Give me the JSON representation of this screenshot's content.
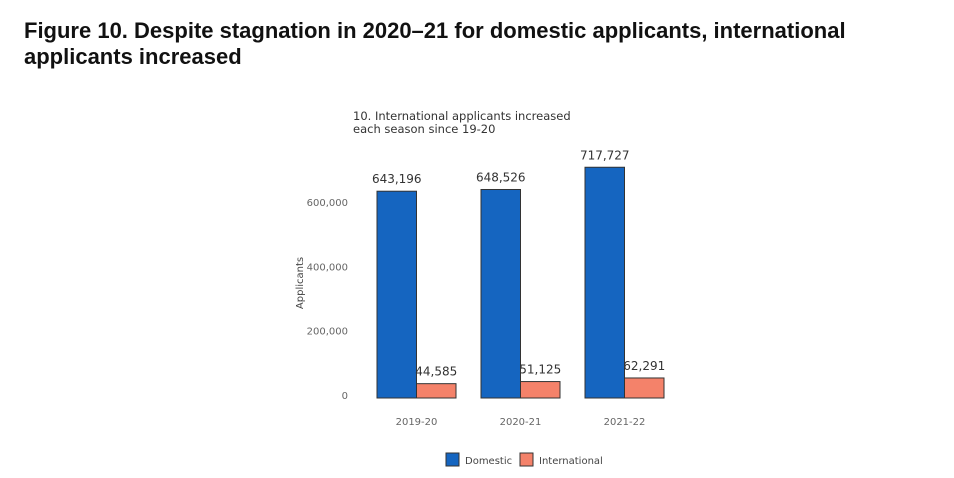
{
  "figure_title": "Figure 10. Despite stagnation in 2020–21 for domestic applicants, international applicants increased",
  "chart_data": {
    "type": "bar",
    "title": "10. International applicants increased each season since 19-20",
    "title_lines": [
      "10. International applicants increased",
      "each season since 19-20"
    ],
    "xlabel": "",
    "ylabel": "Applicants",
    "categories": [
      "2019-20",
      "2020-21",
      "2021-22"
    ],
    "series": [
      {
        "name": "Domestic",
        "color": "#1565c0",
        "values": [
          643196,
          648526,
          717727
        ],
        "labels": [
          "643,196",
          "648,526",
          "717,727"
        ]
      },
      {
        "name": "International",
        "color": "#f4826a",
        "values": [
          44585,
          51125,
          62291
        ],
        "labels": [
          "44,585",
          "51,125",
          "62,291"
        ]
      }
    ],
    "yticks": [
      0,
      200000,
      400000,
      600000
    ],
    "ytick_labels": [
      "0",
      "200,000",
      "400,000",
      "600,000"
    ],
    "ylim": [
      0,
      740000
    ],
    "grid": false,
    "legend": "bottom-center"
  }
}
